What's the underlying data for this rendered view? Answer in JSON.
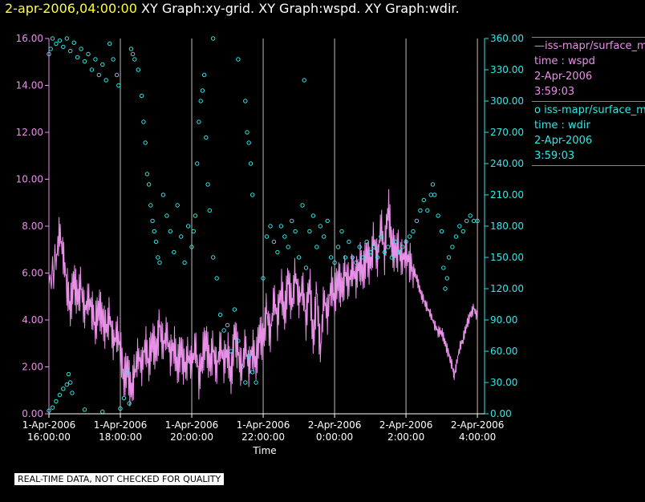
{
  "header": {
    "timestamp": "2-apr-2006,04:00:00",
    "titles": "XY Graph:xy-grid.  XY Graph:wspd.  XY Graph:wdir."
  },
  "legend": {
    "items": [
      {
        "symbol": "—",
        "name": "iss-mapr/surface_m",
        "line2": "time : wspd",
        "line3": "2-Apr-2006",
        "line4": "3:59:03"
      },
      {
        "symbol": "o",
        "name": "iss-mapr/surface_m",
        "line2": "time : wdir",
        "line3": "2-Apr-2006",
        "line4": "3:59:03"
      }
    ]
  },
  "footer": {
    "quality_note": "REAL-TIME DATA, NOT CHECKED FOR QUALITY"
  },
  "colors": {
    "wspd": "#e890e8",
    "wdir": "#33e6e6",
    "axis_left": "#e890e8",
    "axis_right": "#33e6e6",
    "grid": "#bbbbbb",
    "timestamp": "#ffff33"
  },
  "chart_data": {
    "type": "line",
    "xlabel": "Time",
    "x_ticks": [
      {
        "t": 16,
        "date": "1-Apr-2006",
        "time": "16:00:00"
      },
      {
        "t": 18,
        "date": "1-Apr-2006",
        "time": "18:00:00"
      },
      {
        "t": 20,
        "date": "1-Apr-2006",
        "time": "20:00:00"
      },
      {
        "t": 22,
        "date": "1-Apr-2006",
        "time": "22:00:00"
      },
      {
        "t": 24,
        "date": "2-Apr-2006",
        "time": "0:00:00"
      },
      {
        "t": 26,
        "date": "2-Apr-2006",
        "time": "2:00:00"
      },
      {
        "t": 28,
        "date": "2-Apr-2006",
        "time": "4:00:00"
      }
    ],
    "xlim": [
      16,
      28.2
    ],
    "grid": "vertical",
    "y_left": {
      "ylim": [
        0,
        16
      ],
      "ticks": [
        "0.00",
        "2.00",
        "4.00",
        "6.00",
        "8.00",
        "10.00",
        "12.00",
        "14.00",
        "16.00"
      ]
    },
    "y_right": {
      "ylim": [
        0,
        360
      ],
      "ticks": [
        "0.00",
        "30.00",
        "60.00",
        "90.00",
        "120.00",
        "150.00",
        "180.00",
        "210.00",
        "240.00",
        "270.00",
        "300.00",
        "330.00",
        "360.00"
      ]
    },
    "series": [
      {
        "name": "wspd",
        "style": "line",
        "axis": "left",
        "points": [
          [
            16.0,
            5.5
          ],
          [
            16.2,
            6.5
          ],
          [
            16.3,
            7.8
          ],
          [
            16.4,
            6.8
          ],
          [
            16.5,
            5.5
          ],
          [
            16.6,
            4.5
          ],
          [
            16.7,
            5.8
          ],
          [
            16.8,
            4.8
          ],
          [
            16.9,
            5.5
          ],
          [
            17.0,
            4.2
          ],
          [
            17.1,
            5.0
          ],
          [
            17.2,
            4.5
          ],
          [
            17.3,
            3.8
          ],
          [
            17.4,
            4.6
          ],
          [
            17.5,
            4.0
          ],
          [
            17.6,
            3.5
          ],
          [
            17.7,
            4.2
          ],
          [
            17.8,
            3.0
          ],
          [
            17.9,
            3.5
          ],
          [
            18.0,
            2.8
          ],
          [
            18.1,
            1.5
          ],
          [
            18.2,
            2.0
          ],
          [
            18.3,
            0.8
          ],
          [
            18.4,
            1.8
          ],
          [
            18.5,
            2.5
          ],
          [
            18.6,
            2.0
          ],
          [
            18.7,
            3.0
          ],
          [
            18.8,
            2.2
          ],
          [
            18.9,
            3.2
          ],
          [
            19.0,
            2.5
          ],
          [
            19.1,
            3.8
          ],
          [
            19.2,
            2.8
          ],
          [
            19.3,
            3.5
          ],
          [
            19.4,
            2.5
          ],
          [
            19.5,
            3.0
          ],
          [
            19.6,
            2.0
          ],
          [
            19.7,
            2.8
          ],
          [
            19.8,
            1.8
          ],
          [
            19.9,
            2.5
          ],
          [
            20.0,
            2.0
          ],
          [
            20.1,
            3.0
          ],
          [
            20.2,
            1.5
          ],
          [
            20.3,
            2.5
          ],
          [
            20.4,
            3.2
          ],
          [
            20.5,
            2.0
          ],
          [
            20.6,
            2.8
          ],
          [
            20.7,
            1.8
          ],
          [
            20.8,
            3.0
          ],
          [
            20.9,
            2.2
          ],
          [
            21.0,
            2.8
          ],
          [
            21.1,
            1.5
          ],
          [
            21.2,
            3.5
          ],
          [
            21.3,
            2.5
          ],
          [
            21.4,
            1.8
          ],
          [
            21.5,
            3.0
          ],
          [
            21.6,
            2.0
          ],
          [
            21.7,
            2.8
          ],
          [
            21.8,
            2.2
          ],
          [
            21.9,
            3.5
          ],
          [
            22.0,
            3.0
          ],
          [
            22.1,
            4.5
          ],
          [
            22.2,
            3.2
          ],
          [
            22.3,
            5.0
          ],
          [
            22.4,
            4.0
          ],
          [
            22.5,
            5.5
          ],
          [
            22.6,
            4.2
          ],
          [
            22.7,
            5.8
          ],
          [
            22.8,
            4.5
          ],
          [
            22.9,
            6.0
          ],
          [
            23.0,
            4.8
          ],
          [
            23.1,
            5.5
          ],
          [
            23.2,
            4.0
          ],
          [
            23.3,
            5.8
          ],
          [
            23.4,
            3.0
          ],
          [
            23.5,
            5.2
          ],
          [
            23.6,
            2.5
          ],
          [
            23.7,
            5.0
          ],
          [
            23.8,
            4.2
          ],
          [
            23.9,
            5.5
          ],
          [
            24.0,
            5.0
          ],
          [
            24.1,
            5.8
          ],
          [
            24.2,
            5.2
          ],
          [
            24.3,
            6.0
          ],
          [
            24.4,
            5.5
          ],
          [
            24.5,
            6.2
          ],
          [
            24.6,
            5.8
          ],
          [
            24.7,
            6.5
          ],
          [
            24.8,
            6.0
          ],
          [
            24.9,
            6.8
          ],
          [
            25.0,
            6.2
          ],
          [
            25.1,
            7.5
          ],
          [
            25.2,
            6.5
          ],
          [
            25.3,
            8.2
          ],
          [
            25.4,
            6.8
          ],
          [
            25.5,
            9.0
          ],
          [
            25.6,
            7.2
          ],
          [
            25.7,
            6.8
          ],
          [
            25.8,
            7.0
          ],
          [
            25.9,
            6.5
          ],
          [
            26.0,
            6.8
          ],
          [
            26.1,
            6.5
          ],
          [
            26.2,
            6.2
          ],
          [
            26.3,
            5.8
          ],
          [
            26.4,
            5.2
          ],
          [
            26.5,
            4.8
          ],
          [
            26.6,
            4.5
          ],
          [
            26.7,
            4.2
          ],
          [
            26.8,
            3.8
          ],
          [
            26.9,
            3.5
          ],
          [
            27.0,
            3.5
          ],
          [
            27.1,
            3.0
          ],
          [
            27.2,
            2.5
          ],
          [
            27.3,
            2.0
          ],
          [
            27.35,
            1.6
          ],
          [
            27.4,
            2.0
          ],
          [
            27.5,
            2.8
          ],
          [
            27.6,
            3.2
          ],
          [
            27.7,
            3.8
          ],
          [
            27.8,
            4.2
          ],
          [
            27.9,
            4.5
          ],
          [
            28.0,
            4.1
          ]
        ]
      },
      {
        "name": "wdir",
        "style": "scatter",
        "axis": "right",
        "points": [
          [
            16.0,
            345
          ],
          [
            16.05,
            350
          ],
          [
            16.1,
            360
          ],
          [
            16.2,
            355
          ],
          [
            16.3,
            358
          ],
          [
            16.4,
            352
          ],
          [
            16.5,
            360
          ],
          [
            16.6,
            348
          ],
          [
            16.7,
            356
          ],
          [
            16.8,
            342
          ],
          [
            16.9,
            350
          ],
          [
            17.0,
            338
          ],
          [
            17.1,
            345
          ],
          [
            17.2,
            330
          ],
          [
            17.3,
            340
          ],
          [
            17.4,
            325
          ],
          [
            17.5,
            335
          ],
          [
            17.6,
            320
          ],
          [
            17.7,
            355
          ],
          [
            17.8,
            340
          ],
          [
            17.9,
            325
          ],
          [
            17.95,
            315
          ],
          [
            16.0,
            3
          ],
          [
            16.1,
            6
          ],
          [
            16.2,
            12
          ],
          [
            16.3,
            18
          ],
          [
            16.4,
            24
          ],
          [
            16.5,
            28
          ],
          [
            16.55,
            38
          ],
          [
            16.6,
            30
          ],
          [
            16.65,
            20
          ],
          [
            17.0,
            4
          ],
          [
            17.5,
            2
          ],
          [
            18.0,
            5
          ],
          [
            18.1,
            15
          ],
          [
            18.2,
            40
          ],
          [
            18.25,
            10
          ],
          [
            18.3,
            350
          ],
          [
            18.35,
            345
          ],
          [
            18.4,
            340
          ],
          [
            18.5,
            330
          ],
          [
            18.6,
            305
          ],
          [
            18.65,
            280
          ],
          [
            18.7,
            260
          ],
          [
            18.75,
            230
          ],
          [
            18.8,
            220
          ],
          [
            18.85,
            200
          ],
          [
            18.9,
            185
          ],
          [
            18.95,
            175
          ],
          [
            19.0,
            165
          ],
          [
            19.05,
            150
          ],
          [
            19.1,
            145
          ],
          [
            19.2,
            210
          ],
          [
            19.3,
            190
          ],
          [
            19.4,
            175
          ],
          [
            19.5,
            155
          ],
          [
            19.6,
            200
          ],
          [
            19.7,
            170
          ],
          [
            19.8,
            145
          ],
          [
            19.9,
            180
          ],
          [
            20.0,
            160
          ],
          [
            20.05,
            175
          ],
          [
            20.1,
            190
          ],
          [
            20.15,
            240
          ],
          [
            20.2,
            280
          ],
          [
            20.25,
            300
          ],
          [
            20.3,
            310
          ],
          [
            20.35,
            325
          ],
          [
            20.4,
            265
          ],
          [
            20.45,
            220
          ],
          [
            20.5,
            195
          ],
          [
            20.6,
            150
          ],
          [
            20.7,
            130
          ],
          [
            20.8,
            95
          ],
          [
            20.9,
            80
          ],
          [
            21.0,
            85
          ],
          [
            21.1,
            60
          ],
          [
            21.2,
            100
          ],
          [
            21.3,
            70
          ],
          [
            21.4,
            45
          ],
          [
            21.5,
            30
          ],
          [
            21.6,
            55
          ],
          [
            21.7,
            40
          ],
          [
            21.8,
            30
          ],
          [
            21.3,
            340
          ],
          [
            21.5,
            300
          ],
          [
            21.55,
            270
          ],
          [
            21.6,
            260
          ],
          [
            21.65,
            240
          ],
          [
            21.7,
            210
          ],
          [
            20.6,
            360
          ],
          [
            22.0,
            130
          ],
          [
            22.1,
            170
          ],
          [
            22.2,
            180
          ],
          [
            22.3,
            165
          ],
          [
            22.4,
            155
          ],
          [
            22.5,
            180
          ],
          [
            22.6,
            170
          ],
          [
            22.7,
            160
          ],
          [
            22.8,
            185
          ],
          [
            22.9,
            175
          ],
          [
            23.0,
            150
          ],
          [
            23.1,
            200
          ],
          [
            23.15,
            320
          ],
          [
            23.2,
            140
          ],
          [
            23.3,
            175
          ],
          [
            23.4,
            190
          ],
          [
            23.5,
            160
          ],
          [
            23.6,
            180
          ],
          [
            23.7,
            170
          ],
          [
            23.8,
            185
          ],
          [
            23.9,
            150
          ],
          [
            24.0,
            145
          ],
          [
            24.1,
            160
          ],
          [
            24.2,
            175
          ],
          [
            24.3,
            150
          ],
          [
            24.4,
            165
          ],
          [
            24.5,
            150
          ],
          [
            24.6,
            145
          ],
          [
            24.7,
            160
          ],
          [
            24.8,
            150
          ],
          [
            24.9,
            165
          ],
          [
            25.0,
            155
          ],
          [
            25.1,
            160
          ],
          [
            25.2,
            150
          ],
          [
            25.3,
            170
          ],
          [
            25.4,
            155
          ],
          [
            25.5,
            160
          ],
          [
            25.6,
            150
          ],
          [
            25.7,
            165
          ],
          [
            25.8,
            155
          ],
          [
            25.9,
            160
          ],
          [
            26.0,
            165
          ],
          [
            26.1,
            170
          ],
          [
            26.2,
            175
          ],
          [
            26.3,
            185
          ],
          [
            26.4,
            195
          ],
          [
            26.5,
            205
          ],
          [
            26.6,
            195
          ],
          [
            26.7,
            210
          ],
          [
            26.75,
            220
          ],
          [
            26.8,
            210
          ],
          [
            26.9,
            190
          ],
          [
            27.0,
            175
          ],
          [
            27.05,
            140
          ],
          [
            27.1,
            120
          ],
          [
            27.15,
            130
          ],
          [
            27.2,
            150
          ],
          [
            27.3,
            160
          ],
          [
            27.4,
            170
          ],
          [
            27.5,
            180
          ],
          [
            27.6,
            175
          ],
          [
            27.7,
            185
          ],
          [
            27.8,
            190
          ],
          [
            27.9,
            185
          ],
          [
            28.0,
            185
          ]
        ]
      }
    ]
  }
}
